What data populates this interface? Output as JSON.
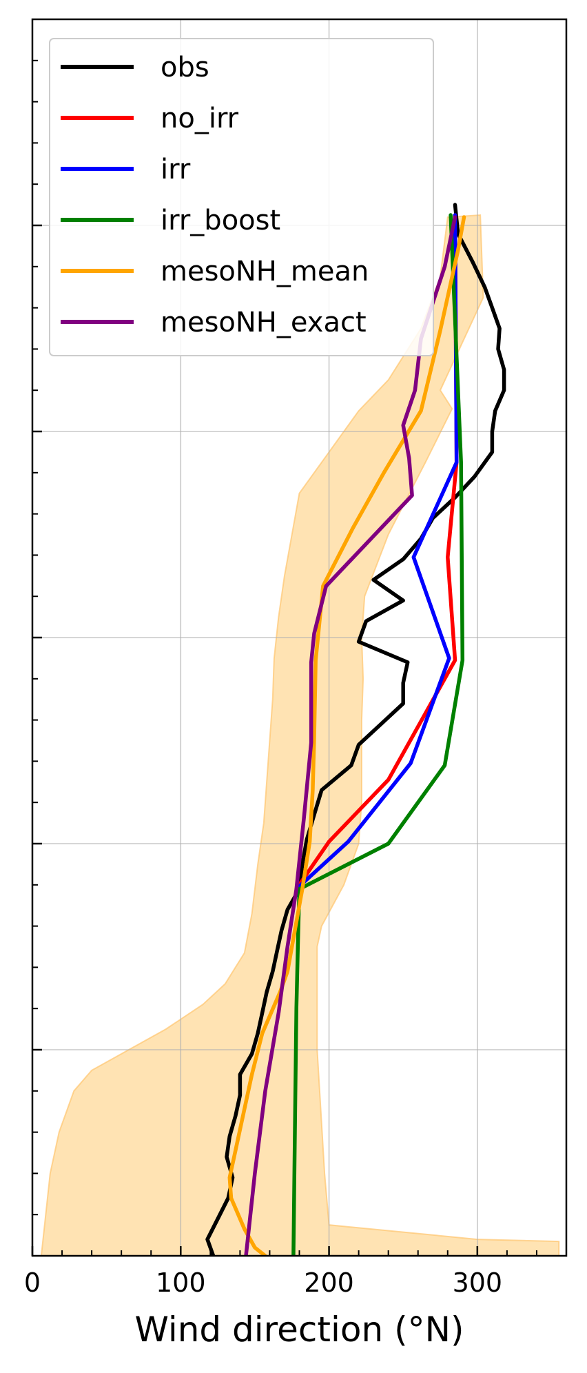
{
  "chart_data": {
    "type": "line",
    "xlabel": "Wind direction (°N)",
    "xlim": [
      0,
      360
    ],
    "ylim": [
      0,
      6000
    ],
    "x_ticks": [
      0,
      100,
      200,
      300
    ],
    "y_major_ticks": [
      1000,
      2000,
      3000,
      4000,
      5000
    ],
    "grid": true,
    "legend_position": "top-left",
    "series": [
      {
        "name": "obs",
        "color": "#000000",
        "points": [
          [
            122,
            0
          ],
          [
            118,
            80
          ],
          [
            125,
            180
          ],
          [
            132,
            280
          ],
          [
            135,
            380
          ],
          [
            131,
            480
          ],
          [
            133,
            580
          ],
          [
            137,
            680
          ],
          [
            140,
            780
          ],
          [
            140,
            880
          ],
          [
            148,
            980
          ],
          [
            152,
            1080
          ],
          [
            155,
            1180
          ],
          [
            158,
            1280
          ],
          [
            162,
            1380
          ],
          [
            165,
            1480
          ],
          [
            168,
            1580
          ],
          [
            172,
            1680
          ],
          [
            180,
            1780
          ],
          [
            182,
            1900
          ],
          [
            185,
            2020
          ],
          [
            190,
            2140
          ],
          [
            195,
            2260
          ],
          [
            215,
            2380
          ],
          [
            220,
            2480
          ],
          [
            235,
            2580
          ],
          [
            250,
            2680
          ],
          [
            250,
            2780
          ],
          [
            253,
            2880
          ],
          [
            220,
            2980
          ],
          [
            225,
            3080
          ],
          [
            250,
            3180
          ],
          [
            230,
            3280
          ],
          [
            250,
            3380
          ],
          [
            262,
            3480
          ],
          [
            270,
            3580
          ],
          [
            285,
            3680
          ],
          [
            298,
            3780
          ],
          [
            310,
            3900
          ],
          [
            310,
            4000
          ],
          [
            312,
            4100
          ],
          [
            318,
            4200
          ],
          [
            318,
            4300
          ],
          [
            314,
            4400
          ],
          [
            315,
            4500
          ],
          [
            310,
            4600
          ],
          [
            305,
            4700
          ],
          [
            297,
            4820
          ],
          [
            287,
            4960
          ],
          [
            285,
            5100
          ]
        ]
      },
      {
        "name": "no_irr",
        "color": "#ff0000",
        "points": [
          [
            178,
            1780
          ],
          [
            200,
            2010
          ],
          [
            240,
            2310
          ],
          [
            285,
            2890
          ],
          [
            280,
            3390
          ],
          [
            286,
            3850
          ],
          [
            285,
            5050
          ]
        ]
      },
      {
        "name": "irr",
        "color": "#0000ff",
        "points": [
          [
            178,
            1780
          ],
          [
            213,
            2010
          ],
          [
            255,
            2390
          ],
          [
            281,
            2900
          ],
          [
            257,
            3390
          ],
          [
            286,
            3850
          ],
          [
            285,
            5050
          ]
        ]
      },
      {
        "name": "irr_boost",
        "color": "#008000",
        "points": [
          [
            176,
            0
          ],
          [
            177,
            600
          ],
          [
            178,
            1200
          ],
          [
            179,
            1500
          ],
          [
            180,
            1780
          ],
          [
            240,
            2000
          ],
          [
            278,
            2380
          ],
          [
            290,
            2890
          ],
          [
            289,
            3850
          ],
          [
            282,
            5050
          ]
        ]
      },
      {
        "name": "mesoNH_mean",
        "color": "#ffa500",
        "points": [
          [
            157,
            0
          ],
          [
            150,
            40
          ],
          [
            143,
            130
          ],
          [
            134,
            280
          ],
          [
            133,
            380
          ],
          [
            136,
            480
          ],
          [
            142,
            680
          ],
          [
            148,
            880
          ],
          [
            155,
            1080
          ],
          [
            161,
            1180
          ],
          [
            167,
            1280
          ],
          [
            172,
            1380
          ],
          [
            177,
            1580
          ],
          [
            182,
            1780
          ],
          [
            187,
            2010
          ],
          [
            189,
            2260
          ],
          [
            190,
            2510
          ],
          [
            191,
            2890
          ],
          [
            196,
            3250
          ],
          [
            216,
            3530
          ],
          [
            237,
            3800
          ],
          [
            262,
            4100
          ],
          [
            275,
            4490
          ],
          [
            287,
            4880
          ],
          [
            291,
            5040
          ]
        ]
      },
      {
        "name": "mesoNH_exact",
        "color": "#800080",
        "points": [
          [
            144,
            0
          ],
          [
            150,
            400
          ],
          [
            157,
            800
          ],
          [
            166,
            1180
          ],
          [
            172,
            1500
          ],
          [
            178,
            1780
          ],
          [
            183,
            2120
          ],
          [
            188,
            2490
          ],
          [
            188,
            2880
          ],
          [
            190,
            3020
          ],
          [
            198,
            3250
          ],
          [
            256,
            3690
          ],
          [
            254,
            3870
          ],
          [
            250,
            4030
          ],
          [
            258,
            4200
          ],
          [
            262,
            4450
          ],
          [
            278,
            4800
          ],
          [
            285,
            5040
          ]
        ]
      }
    ],
    "band": {
      "name": "mesoNH_mean range",
      "color": "#ffe3b3",
      "lower": [
        [
          6,
          0
        ],
        [
          9,
          200
        ],
        [
          12,
          400
        ],
        [
          18,
          600
        ],
        [
          28,
          800
        ],
        [
          40,
          900
        ],
        [
          60,
          980
        ],
        [
          90,
          1100
        ],
        [
          115,
          1220
        ],
        [
          130,
          1320
        ],
        [
          143,
          1470
        ],
        [
          148,
          1660
        ],
        [
          152,
          1900
        ],
        [
          156,
          2100
        ],
        [
          158,
          2300
        ],
        [
          160,
          2500
        ],
        [
          162,
          2700
        ],
        [
          163,
          2900
        ],
        [
          166,
          3100
        ],
        [
          170,
          3300
        ],
        [
          175,
          3500
        ],
        [
          180,
          3700
        ],
        [
          200,
          3900
        ],
        [
          220,
          4100
        ],
        [
          240,
          4250
        ],
        [
          262,
          4500
        ],
        [
          275,
          4750
        ],
        [
          280,
          5040
        ]
      ],
      "upper": [
        [
          355,
          0
        ],
        [
          355,
          70
        ],
        [
          300,
          80
        ],
        [
          200,
          150
        ],
        [
          197,
          400
        ],
        [
          192,
          1000
        ],
        [
          192,
          1500
        ],
        [
          195,
          1600
        ],
        [
          210,
          1800
        ],
        [
          220,
          2000
        ],
        [
          222,
          2200
        ],
        [
          222,
          2400
        ],
        [
          222,
          2600
        ],
        [
          223,
          2800
        ],
        [
          222,
          3000
        ],
        [
          224,
          3200
        ],
        [
          240,
          3500
        ],
        [
          265,
          3850
        ],
        [
          283,
          4110
        ],
        [
          275,
          4200
        ],
        [
          304,
          4650
        ],
        [
          302,
          5050
        ]
      ]
    }
  }
}
